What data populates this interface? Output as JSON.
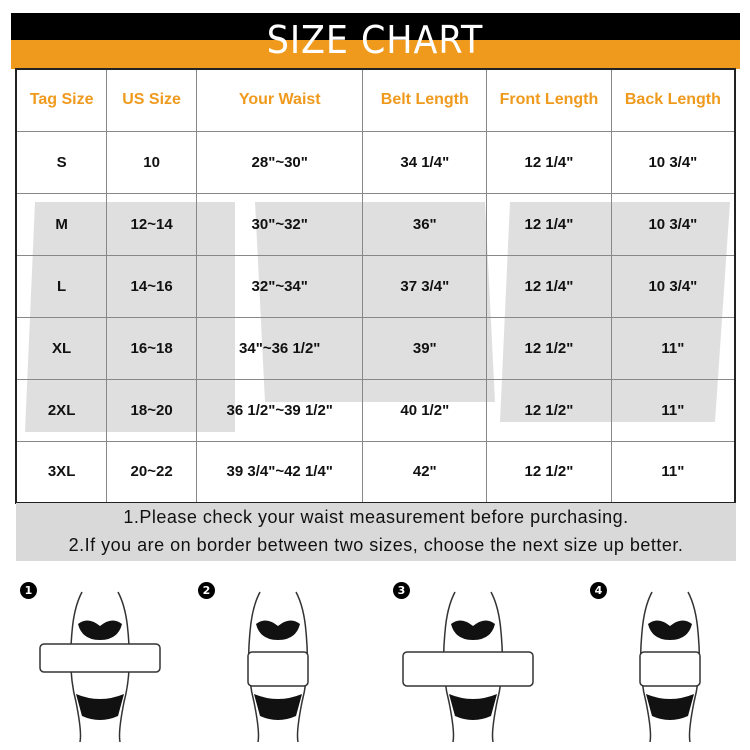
{
  "title": "SIZE CHART",
  "colors": {
    "accent": "#ef9a1d",
    "band": "#000000",
    "notes_bg": "#d9d9d9"
  },
  "headers": [
    "Tag Size",
    "US Size",
    "Your Waist",
    "Belt Length",
    "Front Length",
    "Back Length"
  ],
  "rows": [
    [
      "S",
      "10",
      "28\"~30\"",
      "34 1/4\"",
      "12 1/4\"",
      "10 3/4\""
    ],
    [
      "M",
      "12~14",
      "30\"~32\"",
      "36\"",
      "12 1/4\"",
      "10 3/4\""
    ],
    [
      "L",
      "14~16",
      "32\"~34\"",
      "37 3/4\"",
      "12 1/4\"",
      "10 3/4\""
    ],
    [
      "XL",
      "16~18",
      "34\"~36 1/2\"",
      "39\"",
      "12 1/2\"",
      "11\""
    ],
    [
      "2XL",
      "18~20",
      "36 1/2\"~39 1/2\"",
      "40 1/2\"",
      "12 1/2\"",
      "11\""
    ],
    [
      "3XL",
      "20~22",
      "39 3/4\"~42 1/4\"",
      "42\"",
      "12 1/2\"",
      "11\""
    ]
  ],
  "notes": [
    "1.Please check your waist measurement before purchasing.",
    "2.If you are on border between two sizes, choose the next size up better."
  ],
  "steps": [
    "1",
    "2",
    "3",
    "4"
  ]
}
